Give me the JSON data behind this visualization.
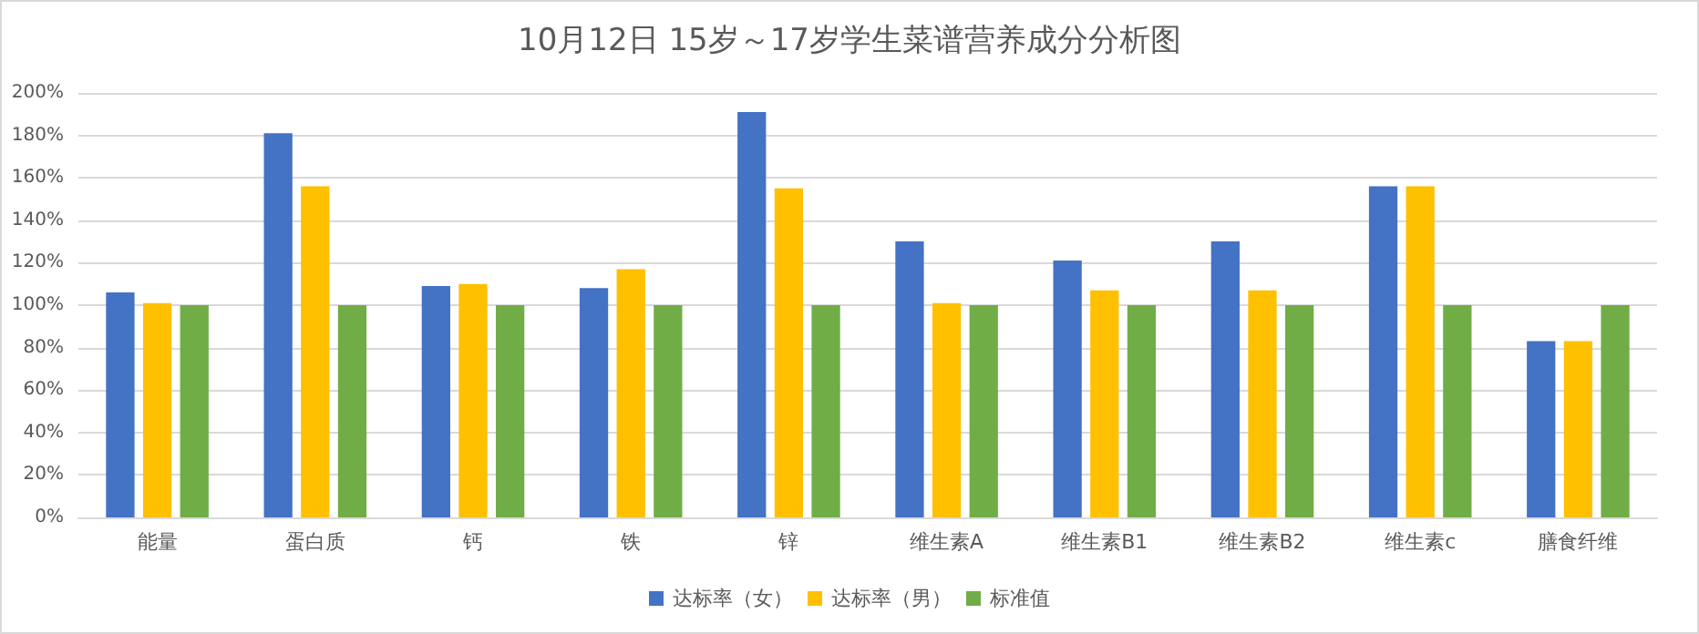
{
  "chart_data": {
    "type": "bar",
    "title": "10月12日 15岁～17岁学生菜谱营养成分分析图",
    "categories": [
      "能量",
      "蛋白质",
      "钙",
      "铁",
      "锌",
      "维生素A",
      "维生素B1",
      "维生素B2",
      "维生素c",
      "膳食纤维"
    ],
    "series": [
      {
        "name": "达标率（女）",
        "color": "#4472c4",
        "values": [
          106,
          181,
          109,
          108,
          191,
          130,
          121,
          130,
          156,
          83
        ]
      },
      {
        "name": "达标率（男）",
        "color": "#ffc000",
        "values": [
          101,
          156,
          110,
          117,
          155,
          101,
          107,
          107,
          156,
          83
        ]
      },
      {
        "name": "标准值",
        "color": "#70ad47",
        "values": [
          100,
          100,
          100,
          100,
          100,
          100,
          100,
          100,
          100,
          100
        ]
      }
    ],
    "ylim": [
      0,
      200
    ],
    "yticks": [
      {
        "value": 0,
        "label": "0%"
      },
      {
        "value": 20,
        "label": "20%"
      },
      {
        "value": 40,
        "label": "40%"
      },
      {
        "value": 60,
        "label": "60%"
      },
      {
        "value": 80,
        "label": "80%"
      },
      {
        "value": 100,
        "label": "100%"
      },
      {
        "value": 120,
        "label": "120%"
      },
      {
        "value": 140,
        "label": "140%"
      },
      {
        "value": 160,
        "label": "160%"
      },
      {
        "value": 180,
        "label": "180%"
      },
      {
        "value": 200,
        "label": "200%"
      }
    ],
    "grid": "y",
    "legend": "bottom"
  }
}
